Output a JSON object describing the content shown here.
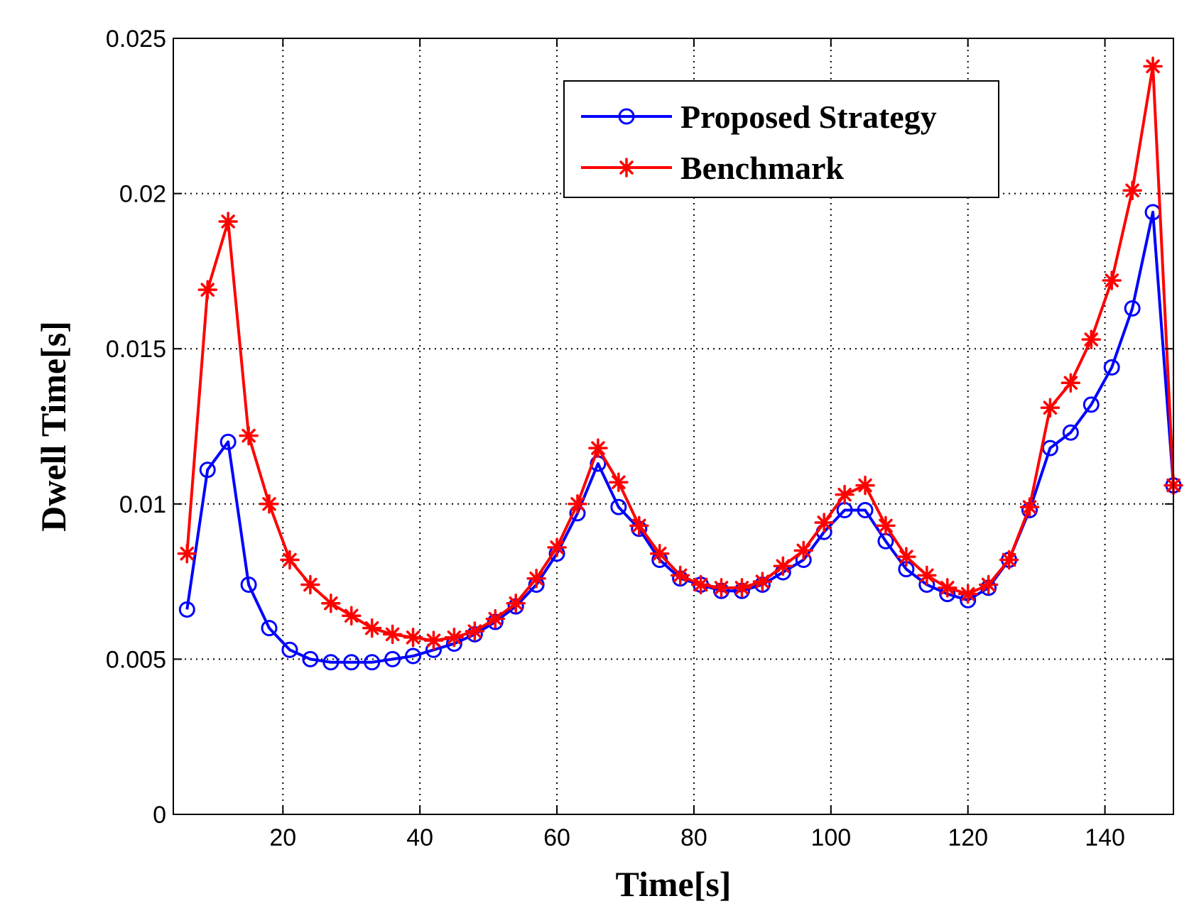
{
  "chart_data": {
    "type": "line",
    "title": "",
    "xlabel": "Time[s]",
    "ylabel": "Dwell Time[s]",
    "xlim": [
      4,
      150
    ],
    "ylim": [
      0,
      0.025
    ],
    "grid": true,
    "legend_position": "top-right",
    "x_ticks": [
      20,
      40,
      60,
      80,
      100,
      120,
      140
    ],
    "x_tick_labels": [
      "20",
      "40",
      "60",
      "80",
      "100",
      "120",
      "140"
    ],
    "y_ticks": [
      0,
      0.005,
      0.01,
      0.015,
      0.02,
      0.025
    ],
    "y_tick_labels": [
      "0",
      "0.005",
      "0.01",
      "0.015",
      "0.02",
      "0.025"
    ],
    "x": [
      6,
      9,
      12,
      15,
      18,
      21,
      24,
      27,
      30,
      33,
      36,
      39,
      42,
      45,
      48,
      51,
      54,
      57,
      60,
      63,
      66,
      69,
      72,
      75,
      78,
      81,
      84,
      87,
      90,
      93,
      96,
      99,
      102,
      105,
      108,
      111,
      114,
      117,
      120,
      123,
      126,
      129,
      132,
      135,
      138,
      141,
      144,
      147,
      150
    ],
    "series": [
      {
        "name": "Proposed Strategy",
        "color": "#0000ff",
        "marker": "circle",
        "values": [
          0.0066,
          0.0111,
          0.012,
          0.0074,
          0.006,
          0.0053,
          0.005,
          0.0049,
          0.0049,
          0.0049,
          0.005,
          0.0051,
          0.0053,
          0.0055,
          0.0058,
          0.0062,
          0.0067,
          0.0074,
          0.0084,
          0.0097,
          0.0113,
          0.0099,
          0.0092,
          0.0082,
          0.0076,
          0.0074,
          0.0072,
          0.0072,
          0.0074,
          0.0078,
          0.0082,
          0.0091,
          0.0098,
          0.0098,
          0.0088,
          0.0079,
          0.0074,
          0.0071,
          0.0069,
          0.0073,
          0.0082,
          0.0098,
          0.0118,
          0.0123,
          0.0132,
          0.0144,
          0.0163,
          0.0194,
          0.0106
        ]
      },
      {
        "name": "Benchmark",
        "color": "#ff0000",
        "marker": "star",
        "values": [
          0.0084,
          0.0169,
          0.0191,
          0.0122,
          0.01,
          0.0082,
          0.0074,
          0.0068,
          0.0064,
          0.006,
          0.0058,
          0.0057,
          0.0056,
          0.0057,
          0.0059,
          0.0063,
          0.0068,
          0.0076,
          0.0086,
          0.01,
          0.0118,
          0.0107,
          0.0093,
          0.0084,
          0.0077,
          0.0074,
          0.0073,
          0.0073,
          0.0075,
          0.008,
          0.0085,
          0.0094,
          0.0103,
          0.0106,
          0.0093,
          0.0083,
          0.0077,
          0.0073,
          0.0071,
          0.0074,
          0.0082,
          0.0099,
          0.0131,
          0.0139,
          0.0153,
          0.0172,
          0.0201,
          0.0241,
          0.0106
        ]
      }
    ]
  }
}
